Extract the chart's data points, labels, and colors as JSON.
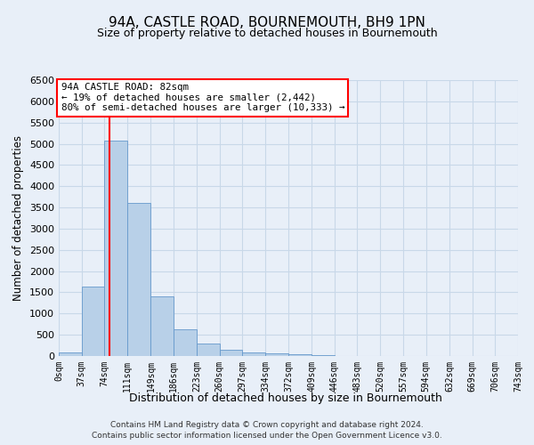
{
  "title": "94A, CASTLE ROAD, BOURNEMOUTH, BH9 1PN",
  "subtitle": "Size of property relative to detached houses in Bournemouth",
  "xlabel": "Distribution of detached houses by size in Bournemouth",
  "ylabel": "Number of detached properties",
  "footer_line1": "Contains HM Land Registry data © Crown copyright and database right 2024.",
  "footer_line2": "Contains public sector information licensed under the Open Government Licence v3.0.",
  "bar_values": [
    75,
    1640,
    5080,
    3600,
    1410,
    620,
    300,
    140,
    90,
    55,
    40,
    30,
    0,
    0,
    0,
    0,
    0,
    0,
    0,
    0
  ],
  "bar_color": "#b8d0e8",
  "bar_edge_color": "#6699cc",
  "bin_edges": [
    0,
    37,
    74,
    111,
    149,
    186,
    223,
    260,
    297,
    334,
    372,
    409,
    446,
    483,
    520,
    557,
    594,
    632,
    669,
    706,
    743
  ],
  "tick_labels": [
    "0sqm",
    "37sqm",
    "74sqm",
    "111sqm",
    "149sqm",
    "186sqm",
    "223sqm",
    "260sqm",
    "297sqm",
    "334sqm",
    "372sqm",
    "409sqm",
    "446sqm",
    "483sqm",
    "520sqm",
    "557sqm",
    "594sqm",
    "632sqm",
    "669sqm",
    "706sqm",
    "743sqm"
  ],
  "ylim": [
    0,
    6500
  ],
  "yticks": [
    0,
    500,
    1000,
    1500,
    2000,
    2500,
    3000,
    3500,
    4000,
    4500,
    5000,
    5500,
    6000,
    6500
  ],
  "vline_x": 82,
  "annotation_title": "94A CASTLE ROAD: 82sqm",
  "annotation_line2": "← 19% of detached houses are smaller (2,442)",
  "annotation_line3": "80% of semi-detached houses are larger (10,333) →",
  "annotation_box_color": "white",
  "annotation_box_edge": "red",
  "vline_color": "red",
  "grid_color": "#c8d8e8",
  "background_color": "#e8eff8"
}
